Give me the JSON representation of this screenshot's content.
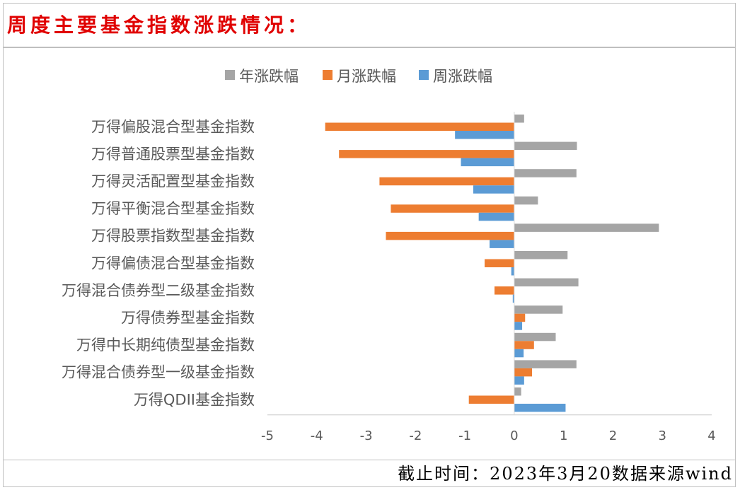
{
  "header": {
    "title": "周度主要基金指数涨跌情况："
  },
  "footer": {
    "note": "截止时间：2023年3月20数据来源wind"
  },
  "colors": {
    "year": "#a5a5a5",
    "month": "#ed7d31",
    "week": "#5b9bd5",
    "axis": "#d9d9d9",
    "text": "#595959"
  },
  "chart_data": {
    "type": "bar",
    "orientation": "horizontal",
    "categories": [
      "万得偏股混合型基金指数",
      "万得普通股票型基金指数",
      "万得灵活配置型基金指数",
      "万得平衡混合型基金指数",
      "万得股票指数型基金指数",
      "万得偏债混合型基金指数",
      "万得混合债券型二级基金指数",
      "万得债券型基金指数",
      "万得中长期纯债型基金指数",
      "万得混合债券型一级基金指数",
      "万得QDII基金指数"
    ],
    "series": [
      {
        "name": "年涨跌幅",
        "color": "#a5a5a5",
        "values": [
          0.2,
          1.27,
          1.26,
          0.48,
          2.93,
          1.08,
          1.3,
          0.98,
          0.84,
          1.26,
          0.14
        ]
      },
      {
        "name": "月涨跌幅",
        "color": "#ed7d31",
        "values": [
          -3.83,
          -3.55,
          -2.73,
          -2.5,
          -2.6,
          -0.6,
          -0.4,
          0.22,
          0.4,
          0.36,
          -0.92
        ]
      },
      {
        "name": "周涨跌幅",
        "color": "#5b9bd5",
        "values": [
          -1.2,
          -1.08,
          -0.83,
          -0.72,
          -0.5,
          -0.06,
          -0.03,
          0.16,
          0.19,
          0.2,
          1.04
        ]
      }
    ],
    "xlim": [
      -5,
      4
    ],
    "xticks": [
      "-5",
      "-4",
      "-3",
      "-2",
      "-1",
      "0",
      "1",
      "2",
      "3",
      "4"
    ],
    "grid": false,
    "legend": "top"
  }
}
